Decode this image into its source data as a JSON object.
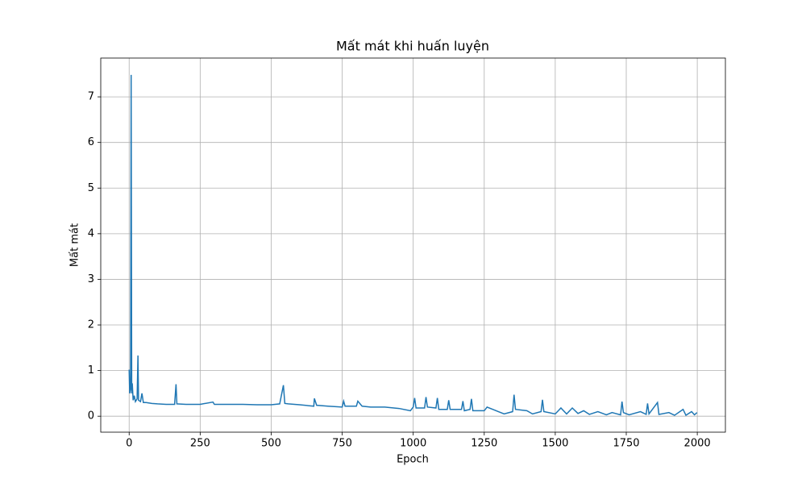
{
  "chart_data": {
    "type": "line",
    "title": "Mất mát khi huấn luyện",
    "x_label": "Epoch",
    "y_label": "Mất mát",
    "xlim": [
      -100,
      2099
    ],
    "ylim": [
      -0.35,
      7.85
    ],
    "xticks": [
      0,
      250,
      500,
      750,
      1000,
      1250,
      1500,
      1750,
      2000
    ],
    "yticks": [
      0,
      1,
      2,
      3,
      4,
      5,
      6,
      7
    ],
    "grid": true,
    "series": [
      {
        "color": "#1f77b4",
        "x": [
          0,
          2,
          5,
          7,
          9,
          11,
          14,
          18,
          22,
          28,
          31,
          33,
          40,
          45,
          50,
          60,
          80,
          100,
          130,
          160,
          165,
          168,
          200,
          250,
          295,
          300,
          350,
          400,
          450,
          500,
          530,
          543,
          548,
          560,
          600,
          650,
          652,
          660,
          700,
          750,
          755,
          760,
          800,
          805,
          820,
          850,
          900,
          950,
          990,
          1000,
          1005,
          1010,
          1040,
          1045,
          1050,
          1080,
          1085,
          1090,
          1120,
          1125,
          1130,
          1170,
          1175,
          1180,
          1200,
          1205,
          1210,
          1250,
          1260,
          1300,
          1320,
          1350,
          1355,
          1360,
          1400,
          1420,
          1450,
          1455,
          1460,
          1500,
          1520,
          1540,
          1560,
          1580,
          1600,
          1620,
          1650,
          1680,
          1700,
          1730,
          1735,
          1740,
          1760,
          1800,
          1820,
          1825,
          1830,
          1860,
          1865,
          1900,
          1920,
          1950,
          1960,
          1980,
          1990,
          1999
        ],
        "values": [
          1.02,
          0.5,
          0.6,
          7.48,
          0.5,
          0.72,
          0.35,
          0.45,
          0.32,
          0.38,
          1.33,
          0.35,
          0.32,
          0.5,
          0.3,
          0.3,
          0.28,
          0.27,
          0.26,
          0.26,
          0.7,
          0.27,
          0.26,
          0.26,
          0.31,
          0.26,
          0.26,
          0.26,
          0.25,
          0.25,
          0.27,
          0.68,
          0.28,
          0.27,
          0.25,
          0.22,
          0.39,
          0.24,
          0.22,
          0.2,
          0.33,
          0.22,
          0.22,
          0.33,
          0.22,
          0.2,
          0.2,
          0.17,
          0.12,
          0.2,
          0.4,
          0.18,
          0.18,
          0.42,
          0.2,
          0.18,
          0.4,
          0.15,
          0.15,
          0.35,
          0.15,
          0.15,
          0.33,
          0.12,
          0.15,
          0.38,
          0.12,
          0.12,
          0.2,
          0.1,
          0.05,
          0.1,
          0.47,
          0.15,
          0.12,
          0.05,
          0.1,
          0.36,
          0.1,
          0.05,
          0.18,
          0.05,
          0.18,
          0.06,
          0.12,
          0.04,
          0.1,
          0.03,
          0.08,
          0.03,
          0.32,
          0.08,
          0.03,
          0.1,
          0.04,
          0.28,
          0.05,
          0.3,
          0.04,
          0.08,
          0.02,
          0.15,
          0.02,
          0.1,
          0.03,
          0.08
        ]
      }
    ]
  }
}
